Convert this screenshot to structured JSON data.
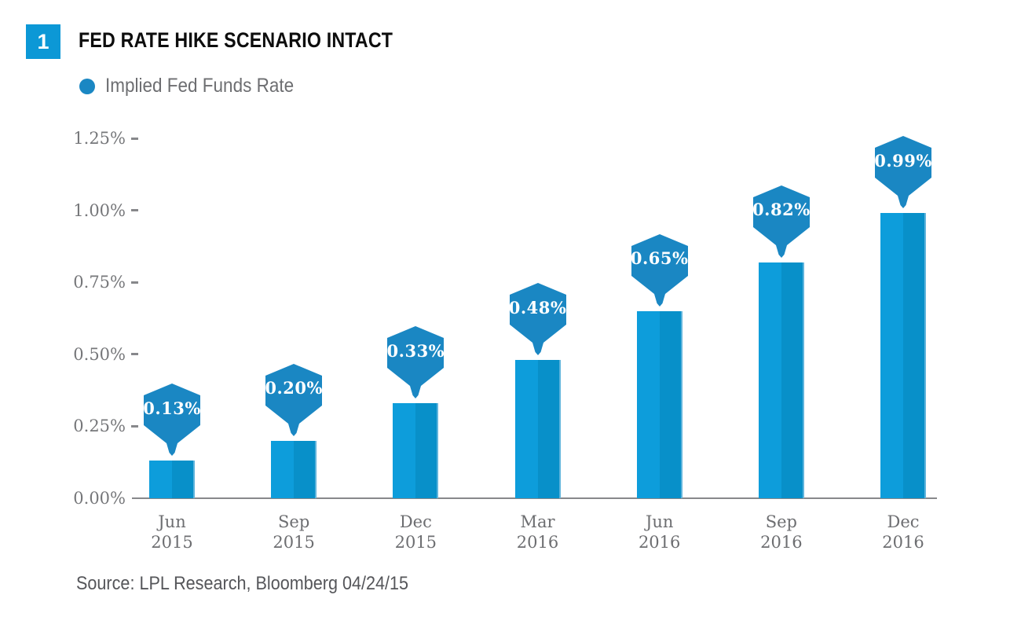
{
  "header": {
    "figure_number": "1",
    "title": "FED RATE HIKE SCENARIO INTACT"
  },
  "legend": {
    "label": "Implied Fed Funds Rate"
  },
  "source_note": "Source: LPL Research, Bloomberg 04/24/15",
  "colors": {
    "badge_blue": "#0c98d6",
    "callout_blue": "#1a87c3",
    "bar_left_blue": "#0d9ddb",
    "bar_right_blue": "#0890c9",
    "bar_edge_highlight": "#5fb4dc",
    "axis_gray": "#87888b",
    "tick_text_gray": "#76777a",
    "label_text_gray": "#6d6e71"
  },
  "chart_data": {
    "type": "bar",
    "title": "FED RATE HIKE SCENARIO INTACT",
    "series_name": "Implied Fed Funds Rate",
    "categories": [
      {
        "month": "Jun",
        "year": "2015"
      },
      {
        "month": "Sep",
        "year": "2015"
      },
      {
        "month": "Dec",
        "year": "2015"
      },
      {
        "month": "Mar",
        "year": "2016"
      },
      {
        "month": "Jun",
        "year": "2016"
      },
      {
        "month": "Sep",
        "year": "2016"
      },
      {
        "month": "Dec",
        "year": "2016"
      }
    ],
    "values": [
      0.13,
      0.2,
      0.33,
      0.48,
      0.65,
      0.82,
      0.99
    ],
    "bar_labels": [
      "0.13%",
      "0.20%",
      "0.33%",
      "0.48%",
      "0.65%",
      "0.82%",
      "0.99%"
    ],
    "yticks": [
      {
        "label": "1.25%",
        "value": 1.25
      },
      {
        "label": "1.00%",
        "value": 1.0
      },
      {
        "label": "0.75%",
        "value": 0.75
      },
      {
        "label": "0.50%",
        "value": 0.5
      },
      {
        "label": "0.25%",
        "value": 0.25
      },
      {
        "label": "0.00%",
        "value": 0.0
      }
    ],
    "ylim": [
      0,
      1.25
    ],
    "xlabel": "",
    "ylabel": "",
    "grid": false,
    "legend_position": "top-left",
    "callout_shape": "hexagon-pin"
  }
}
